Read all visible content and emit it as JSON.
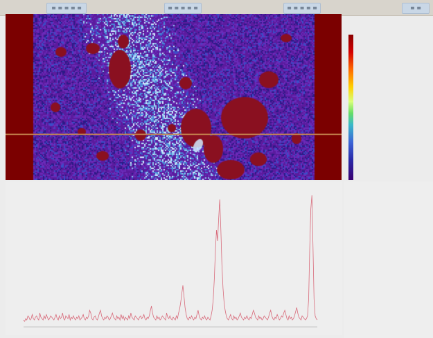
{
  "toolbar": {
    "buttons": [
      {
        "label": "≡ ≡ ≡ ≡ ≡"
      },
      {
        "label": "≡ ≡ ≡ ≡ ≡"
      },
      {
        "label": "≡ ≡ ≡ ≡ ≡"
      },
      {
        "label": "≡ ≡"
      }
    ]
  },
  "heatmap": {
    "border_color": "#7b0000",
    "background_color": "#5a1aa8",
    "palette": [
      "#5b1b9e",
      "#6a2ab8",
      "#3c4cc8",
      "#4a8ad8",
      "#8fc8f0",
      "#d0eaff",
      "#2b1a88",
      "#8a1020"
    ],
    "blob_color": "#8a1020",
    "crosshair_color": "#c88a50",
    "crosshair_y_fraction": 0.72
  },
  "legend": {
    "header_left": "",
    "header_right": "",
    "labels": [
      {
        "text": ""
      },
      {
        "text": ""
      },
      {
        "text": ""
      },
      {
        "text": ""
      },
      {
        "text": ""
      },
      {
        "text": ""
      },
      {
        "text": ""
      },
      {
        "text": ""
      },
      {
        "text": ""
      },
      {
        "text": ""
      },
      {
        "text": ""
      },
      {
        "text": ""
      },
      {
        "text": ""
      },
      {
        "text": ""
      },
      {
        "text": ""
      },
      {
        "text": ""
      }
    ],
    "footer": ""
  },
  "side_label": "",
  "profile": {
    "line_color": "#d86a7a",
    "axis_color": "#9a9a9a",
    "y_tick_label": "",
    "ymax": 1.0,
    "values": [
      0.05,
      0.04,
      0.06,
      0.05,
      0.08,
      0.07,
      0.05,
      0.06,
      0.09,
      0.06,
      0.05,
      0.07,
      0.08,
      0.06,
      0.05,
      0.1,
      0.07,
      0.06,
      0.05,
      0.08,
      0.06,
      0.09,
      0.07,
      0.05,
      0.06,
      0.08,
      0.07,
      0.06,
      0.05,
      0.07,
      0.09,
      0.06,
      0.05,
      0.08,
      0.06,
      0.07,
      0.1,
      0.06,
      0.05,
      0.08,
      0.07,
      0.06,
      0.09,
      0.05,
      0.07,
      0.06,
      0.08,
      0.06,
      0.05,
      0.07,
      0.06,
      0.08,
      0.05,
      0.06,
      0.07,
      0.09,
      0.06,
      0.05,
      0.07,
      0.06,
      0.08,
      0.12,
      0.1,
      0.06,
      0.05,
      0.07,
      0.08,
      0.06,
      0.05,
      0.07,
      0.1,
      0.12,
      0.08,
      0.06,
      0.05,
      0.07,
      0.06,
      0.08,
      0.07,
      0.05,
      0.06,
      0.08,
      0.1,
      0.07,
      0.06,
      0.05,
      0.08,
      0.06,
      0.07,
      0.05,
      0.09,
      0.06,
      0.08,
      0.05,
      0.07,
      0.06,
      0.05,
      0.08,
      0.06,
      0.1,
      0.07,
      0.06,
      0.05,
      0.08,
      0.07,
      0.06,
      0.05,
      0.07,
      0.08,
      0.06,
      0.07,
      0.09,
      0.06,
      0.05,
      0.07,
      0.06,
      0.08,
      0.12,
      0.15,
      0.1,
      0.07,
      0.06,
      0.05,
      0.08,
      0.06,
      0.07,
      0.05,
      0.06,
      0.08,
      0.07,
      0.06,
      0.05,
      0.1,
      0.07,
      0.06,
      0.08,
      0.06,
      0.05,
      0.07,
      0.06,
      0.05,
      0.08,
      0.06,
      0.1,
      0.13,
      0.18,
      0.24,
      0.3,
      0.22,
      0.14,
      0.09,
      0.06,
      0.05,
      0.07,
      0.06,
      0.08,
      0.06,
      0.05,
      0.07,
      0.06,
      0.09,
      0.12,
      0.08,
      0.06,
      0.05,
      0.07,
      0.06,
      0.08,
      0.06,
      0.05,
      0.07,
      0.06,
      0.05,
      0.08,
      0.12,
      0.2,
      0.35,
      0.55,
      0.7,
      0.62,
      0.78,
      0.92,
      0.7,
      0.45,
      0.28,
      0.18,
      0.12,
      0.08,
      0.06,
      0.05,
      0.07,
      0.09,
      0.06,
      0.05,
      0.08,
      0.06,
      0.07,
      0.05,
      0.06,
      0.08,
      0.1,
      0.07,
      0.06,
      0.05,
      0.07,
      0.06,
      0.08,
      0.06,
      0.05,
      0.07,
      0.06,
      0.09,
      0.12,
      0.1,
      0.07,
      0.06,
      0.05,
      0.08,
      0.06,
      0.07,
      0.05,
      0.06,
      0.08,
      0.07,
      0.06,
      0.05,
      0.07,
      0.1,
      0.12,
      0.08,
      0.06,
      0.05,
      0.07,
      0.06,
      0.09,
      0.07,
      0.05,
      0.06,
      0.08,
      0.07,
      0.1,
      0.12,
      0.09,
      0.06,
      0.05,
      0.08,
      0.06,
      0.07,
      0.05,
      0.06,
      0.08,
      0.11,
      0.14,
      0.1,
      0.07,
      0.06,
      0.05,
      0.08,
      0.07,
      0.06,
      0.05,
      0.06,
      0.08,
      0.2,
      0.55,
      0.85,
      0.95,
      0.6,
      0.2,
      0.08,
      0.06,
      0.05
    ]
  }
}
